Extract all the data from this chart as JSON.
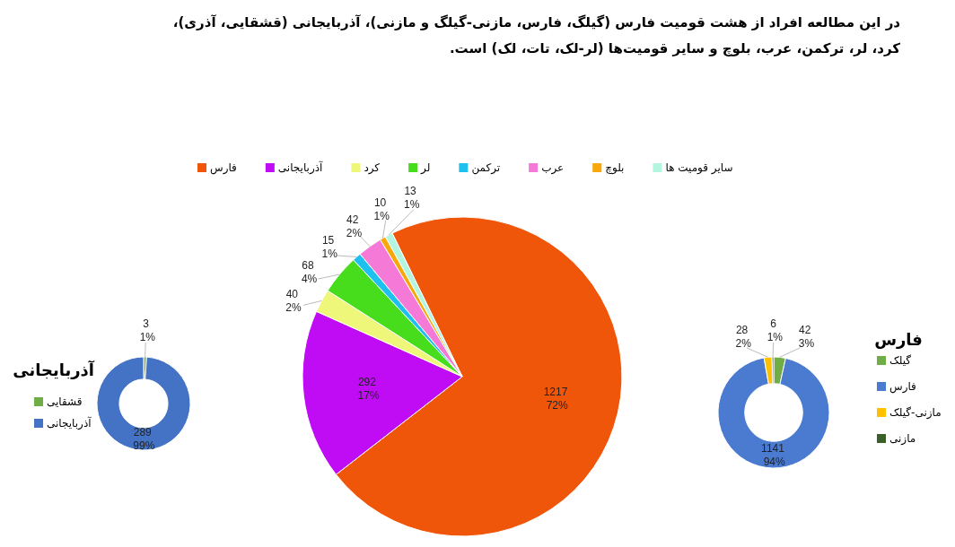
{
  "chart_data": [
    {
      "type": "donut",
      "title": "آذربایجانی",
      "categories": [
        "قشقایی",
        "آذربایجانی"
      ],
      "values": [
        3,
        289
      ],
      "colors": [
        "#70ad47",
        "#4472c4"
      ],
      "value_labels": [
        "3 1%",
        "289 99%"
      ],
      "legend": "left"
    },
    {
      "type": "pie",
      "title": "در این مطالعه افراد از هشت قومیت فارس (گیلگ، فارس، مازنی-گیلگ و مازنی)، آذربایجانی (قشقایی، آذری)، کرد، لر، ترکمن، عرب، بلوچ و سایر قومیت‌ها (لر-لک، تات، لک) است.",
      "categories": [
        "فارس",
        "آذربایجانی",
        "کرد",
        "لر",
        "ترکمن",
        "عرب",
        "بلوچ",
        "سایر قومیت ها"
      ],
      "values": [
        1217,
        292,
        40,
        68,
        15,
        42,
        10,
        13
      ],
      "colors": [
        "#f0560a",
        "#c00cf5",
        "#eef77a",
        "#48dd1c",
        "#1ec0f0",
        "#f57ad8",
        "#f8a80a",
        "#b4f5e0"
      ],
      "value_labels": [
        "1217 72%",
        "292 17%",
        "40 2%",
        "68 4%",
        "15 1%",
        "42 2%",
        "10 1%",
        "13 1%"
      ],
      "legend": "top"
    },
    {
      "type": "donut",
      "title": "فارس",
      "categories": [
        "گیلک",
        "فارس",
        "مازنی-گیلک",
        "مازنی"
      ],
      "values": [
        42,
        1141,
        28,
        6
      ],
      "colors": [
        "#70ad47",
        "#4a7bd0",
        "#ffc000",
        "#3a5f28"
      ],
      "value_labels": [
        "42 3%",
        "1141 94%",
        "28 2%",
        "6 1%"
      ],
      "legend": "right"
    }
  ]
}
